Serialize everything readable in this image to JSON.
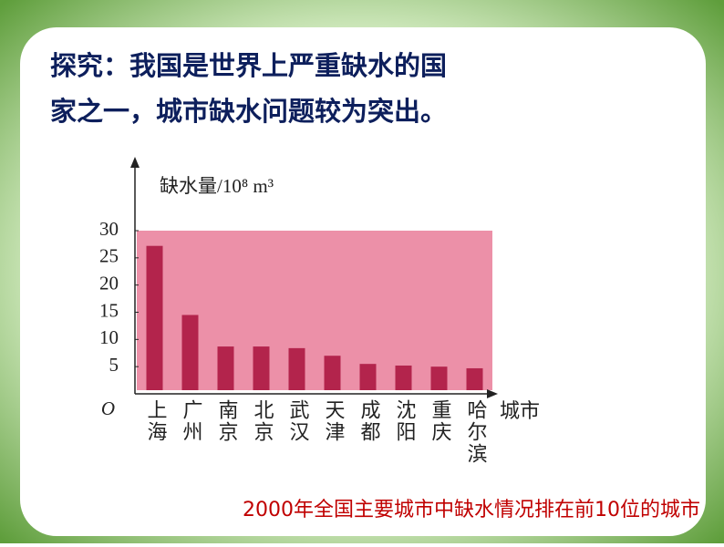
{
  "slide": {
    "heading_line1": "探究：我国是世界上严重缺水的国",
    "heading_line2": "家之一，城市缺水问题较为突出。",
    "caption": "2000年全国主要城市中缺水情况排在前10位的城市"
  },
  "chart_data": {
    "type": "bar",
    "y_label": "缺水量/10⁸ m³",
    "x_label": "城市",
    "categories": [
      "上海",
      "广州",
      "南京",
      "北京",
      "武汉",
      "天津",
      "成都",
      "沈阳",
      "重庆",
      "哈尔滨"
    ],
    "values": [
      27.2,
      14.5,
      8.7,
      8.7,
      8.4,
      7,
      5.5,
      5.2,
      5,
      4.7
    ],
    "color": "#b3244c",
    "plot_background": "#ec90a8",
    "ylim": [
      0,
      30
    ],
    "yticks": [
      {
        "value": 0,
        "label": "O"
      },
      5,
      10,
      15,
      20,
      25,
      30
    ]
  }
}
